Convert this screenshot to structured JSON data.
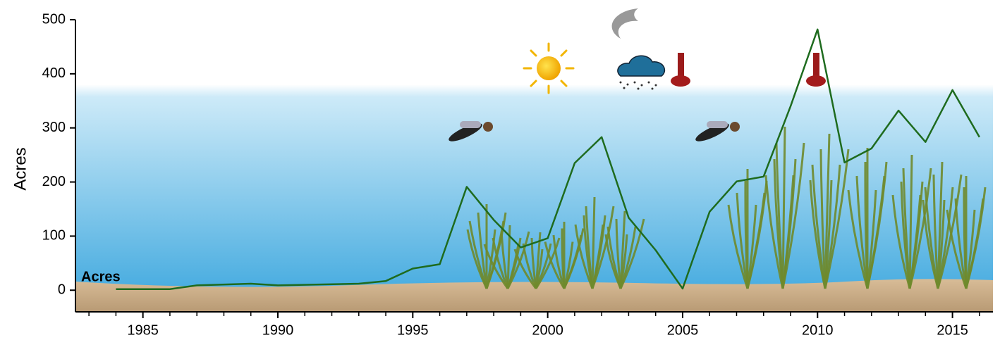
{
  "chart_data": {
    "type": "line",
    "y_label": "Acres",
    "x": [
      1984,
      1986,
      1987,
      1989,
      1990,
      1993,
      1994,
      1995,
      1996,
      1997,
      1998,
      1999,
      2000,
      2001,
      2002,
      2003,
      2004,
      2005,
      2006,
      2007,
      2008,
      2009,
      2010,
      2011,
      2012,
      2013,
      2014,
      2015,
      2016
    ],
    "series": [
      {
        "name": "Acres",
        "color": "#1e6b1e",
        "values": [
          2,
          2,
          9,
          12,
          9,
          12,
          17,
          40,
          48,
          191,
          130,
          79,
          96,
          235,
          283,
          134,
          74,
          3,
          145,
          201,
          210,
          340,
          482,
          236,
          262,
          332,
          274,
          370,
          283
        ]
      }
    ],
    "xlim": [
      1982.5,
      2016.5
    ],
    "ylim": [
      -40,
      500
    ],
    "xticks": [
      1985,
      1990,
      1995,
      2000,
      2005,
      2010,
      2015
    ],
    "xminor_ticks": [
      1983,
      1984,
      1986,
      1987,
      1988,
      1989,
      1991,
      1992,
      1993,
      1994,
      1996,
      1997,
      1998,
      1999,
      2001,
      2002,
      2003,
      2004,
      2006,
      2007,
      2008,
      2009,
      2011,
      2012,
      2013,
      2014,
      2016
    ],
    "yticks": [
      0,
      100,
      200,
      300,
      400,
      500
    ]
  }
}
